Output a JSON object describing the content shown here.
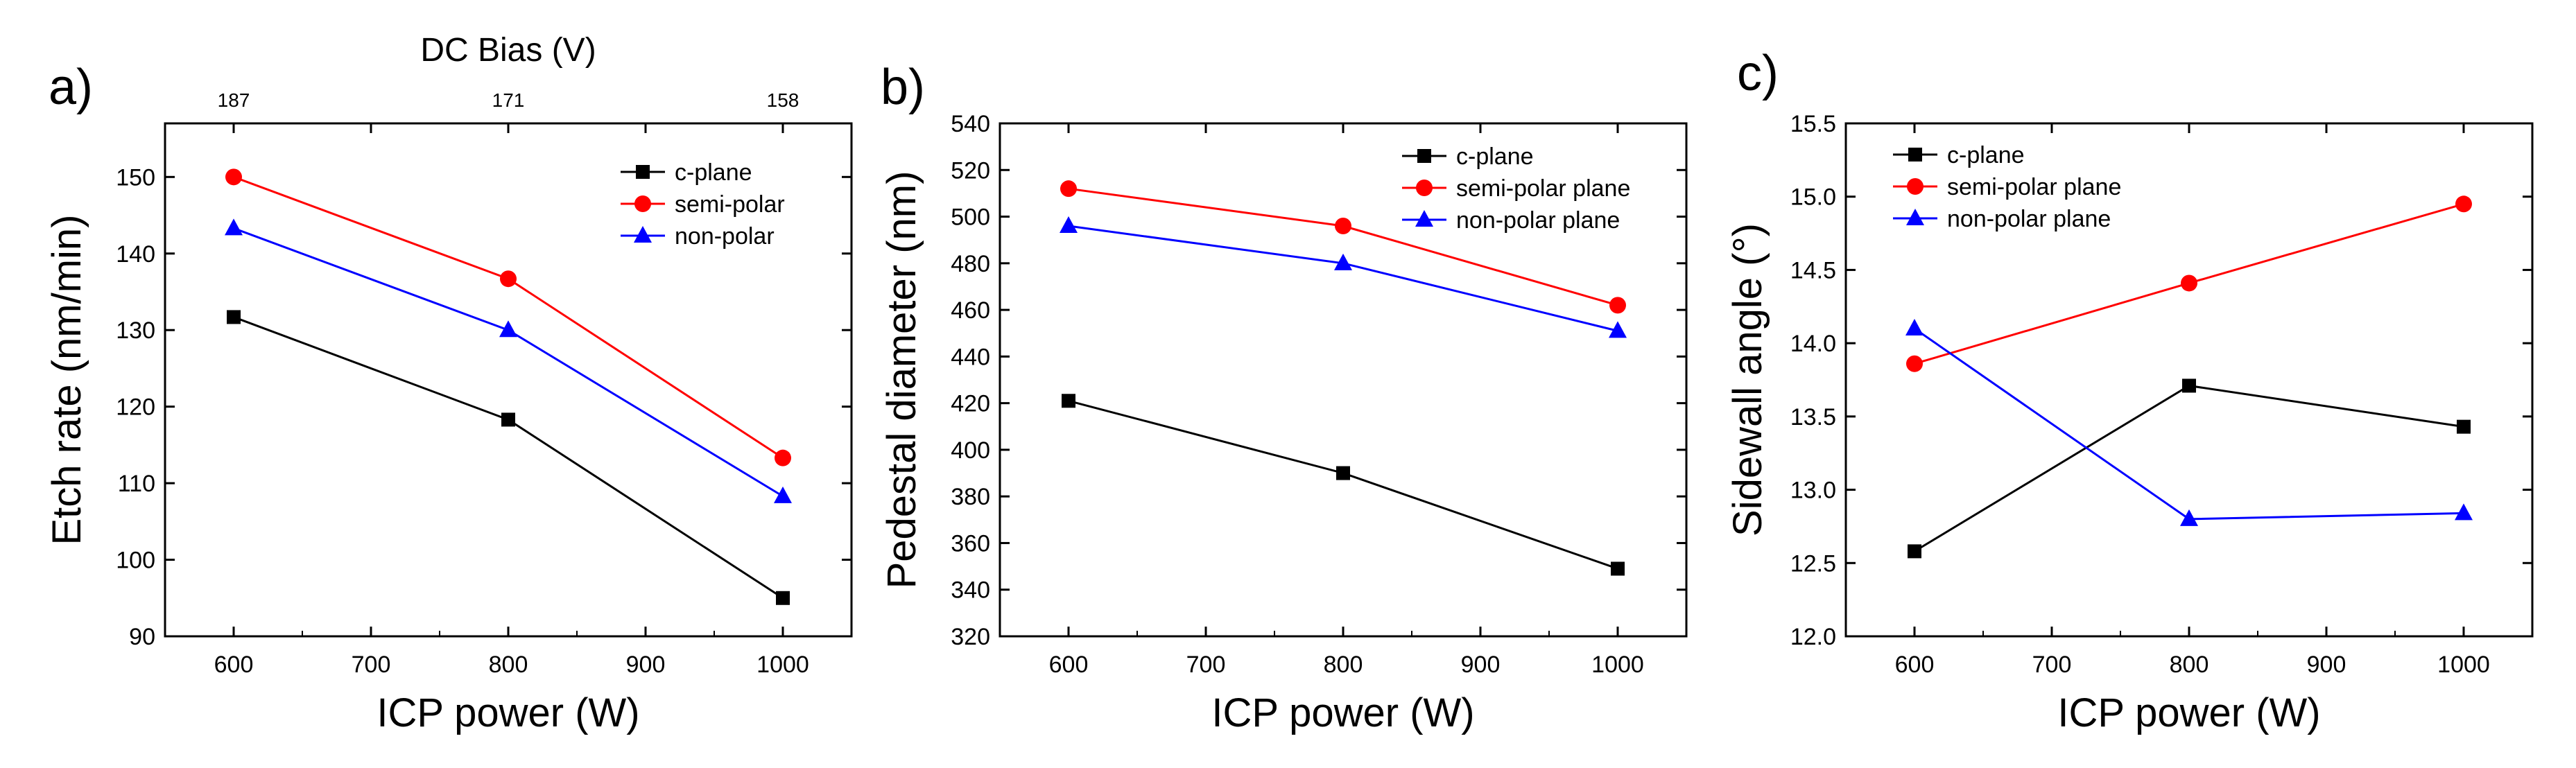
{
  "chart_data": [
    {
      "type": "line",
      "panel_label": "a)",
      "xlabel": "ICP power (W)",
      "ylabel": "Etch rate (nm/min)",
      "x2label": "DC Bias (V)",
      "x2ticks": [
        {
          "at": 600,
          "label": "187"
        },
        {
          "at": 800,
          "label": "171"
        },
        {
          "at": 1000,
          "label": "158"
        }
      ],
      "xlim": [
        550,
        1050
      ],
      "ylim": [
        90,
        157
      ],
      "xticks": [
        600,
        700,
        800,
        900,
        1000
      ],
      "yticks": [
        90,
        100,
        110,
        120,
        130,
        140,
        150
      ],
      "x": [
        600,
        800,
        1000
      ],
      "legend_position": "top-right",
      "series": [
        {
          "name": "c-plane",
          "color": "#000000",
          "marker": "square",
          "values": [
            131.7,
            118.3,
            95.0
          ]
        },
        {
          "name": "semi-polar",
          "color": "#ff0000",
          "marker": "circle",
          "values": [
            150.0,
            136.7,
            113.3
          ]
        },
        {
          "name": "non-polar",
          "color": "#0000ff",
          "marker": "triangle",
          "values": [
            143.3,
            130.0,
            108.3
          ]
        }
      ]
    },
    {
      "type": "line",
      "panel_label": "b)",
      "xlabel": "ICP power (W)",
      "ylabel": "Pedestal diameter (nm)",
      "xlim": [
        550,
        1050
      ],
      "ylim": [
        320,
        540
      ],
      "xticks": [
        600,
        700,
        800,
        900,
        1000
      ],
      "yticks": [
        320,
        340,
        360,
        380,
        400,
        420,
        440,
        460,
        480,
        500,
        520,
        540
      ],
      "x": [
        600,
        800,
        1000
      ],
      "legend_position": "top-right",
      "series": [
        {
          "name": "c-plane",
          "color": "#000000",
          "marker": "square",
          "values": [
            421,
            390,
            349
          ]
        },
        {
          "name": "semi-polar plane",
          "color": "#ff0000",
          "marker": "circle",
          "values": [
            512,
            496,
            462
          ]
        },
        {
          "name": "non-polar plane",
          "color": "#0000ff",
          "marker": "triangle",
          "values": [
            496,
            480,
            451
          ]
        }
      ]
    },
    {
      "type": "line",
      "panel_label": "c)",
      "xlabel": "ICP power (W)",
      "ylabel": "Sidewall angle (°)",
      "xlim": [
        550,
        1050
      ],
      "ylim": [
        12.0,
        15.5
      ],
      "xticks": [
        600,
        700,
        800,
        900,
        1000
      ],
      "yticks": [
        "12.0",
        "12.5",
        "13.0",
        "13.5",
        "14.0",
        "14.5",
        "15.0",
        "15.5"
      ],
      "x": [
        600,
        800,
        1000
      ],
      "legend_position": "top-left",
      "series": [
        {
          "name": "c-plane",
          "color": "#000000",
          "marker": "square",
          "values": [
            12.58,
            13.71,
            13.43
          ]
        },
        {
          "name": "semi-polar plane",
          "color": "#ff0000",
          "marker": "circle",
          "values": [
            13.86,
            14.41,
            14.95
          ]
        },
        {
          "name": "non-polar plane",
          "color": "#0000ff",
          "marker": "triangle",
          "values": [
            14.1,
            12.8,
            12.84
          ]
        }
      ]
    }
  ]
}
